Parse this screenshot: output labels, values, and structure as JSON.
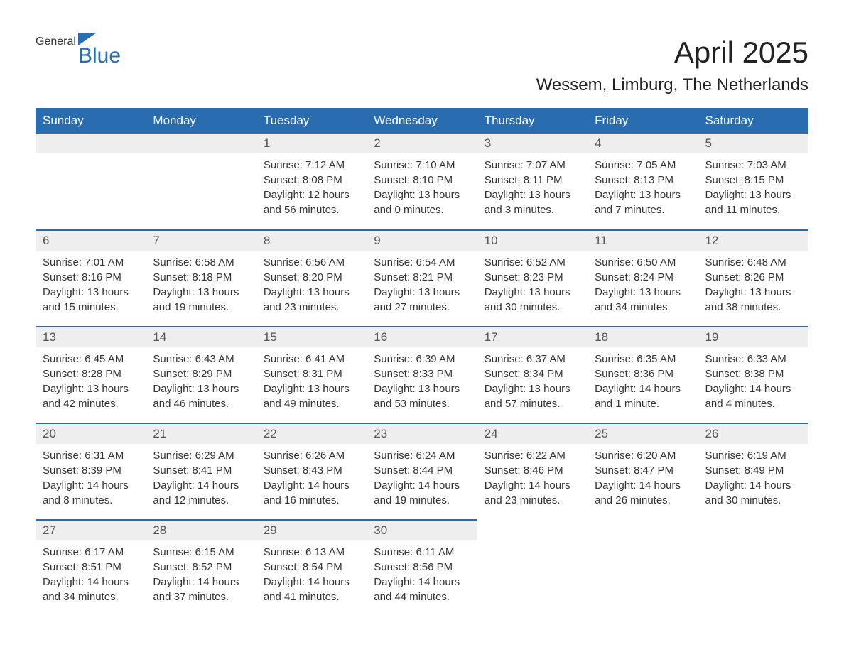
{
  "logo": {
    "general": "General",
    "blue": "Blue"
  },
  "title": "April 2025",
  "subtitle": "Wessem, Limburg, The Netherlands",
  "dayHeaders": [
    "Sunday",
    "Monday",
    "Tuesday",
    "Wednesday",
    "Thursday",
    "Friday",
    "Saturday"
  ],
  "colors": {
    "headerBg": "#2a6cb0",
    "headerText": "#ffffff",
    "dateBarBg": "#eeeeee",
    "bodyText": "#333333",
    "dateText": "#555555",
    "borderTop": "#2a6cb0"
  },
  "weeks": [
    [
      {
        "date": "",
        "sunrise": "",
        "sunset": "",
        "daylight": ""
      },
      {
        "date": "",
        "sunrise": "",
        "sunset": "",
        "daylight": ""
      },
      {
        "date": "1",
        "sunrise": "Sunrise: 7:12 AM",
        "sunset": "Sunset: 8:08 PM",
        "daylight": "Daylight: 12 hours and 56 minutes."
      },
      {
        "date": "2",
        "sunrise": "Sunrise: 7:10 AM",
        "sunset": "Sunset: 8:10 PM",
        "daylight": "Daylight: 13 hours and 0 minutes."
      },
      {
        "date": "3",
        "sunrise": "Sunrise: 7:07 AM",
        "sunset": "Sunset: 8:11 PM",
        "daylight": "Daylight: 13 hours and 3 minutes."
      },
      {
        "date": "4",
        "sunrise": "Sunrise: 7:05 AM",
        "sunset": "Sunset: 8:13 PM",
        "daylight": "Daylight: 13 hours and 7 minutes."
      },
      {
        "date": "5",
        "sunrise": "Sunrise: 7:03 AM",
        "sunset": "Sunset: 8:15 PM",
        "daylight": "Daylight: 13 hours and 11 minutes."
      }
    ],
    [
      {
        "date": "6",
        "sunrise": "Sunrise: 7:01 AM",
        "sunset": "Sunset: 8:16 PM",
        "daylight": "Daylight: 13 hours and 15 minutes."
      },
      {
        "date": "7",
        "sunrise": "Sunrise: 6:58 AM",
        "sunset": "Sunset: 8:18 PM",
        "daylight": "Daylight: 13 hours and 19 minutes."
      },
      {
        "date": "8",
        "sunrise": "Sunrise: 6:56 AM",
        "sunset": "Sunset: 8:20 PM",
        "daylight": "Daylight: 13 hours and 23 minutes."
      },
      {
        "date": "9",
        "sunrise": "Sunrise: 6:54 AM",
        "sunset": "Sunset: 8:21 PM",
        "daylight": "Daylight: 13 hours and 27 minutes."
      },
      {
        "date": "10",
        "sunrise": "Sunrise: 6:52 AM",
        "sunset": "Sunset: 8:23 PM",
        "daylight": "Daylight: 13 hours and 30 minutes."
      },
      {
        "date": "11",
        "sunrise": "Sunrise: 6:50 AM",
        "sunset": "Sunset: 8:24 PM",
        "daylight": "Daylight: 13 hours and 34 minutes."
      },
      {
        "date": "12",
        "sunrise": "Sunrise: 6:48 AM",
        "sunset": "Sunset: 8:26 PM",
        "daylight": "Daylight: 13 hours and 38 minutes."
      }
    ],
    [
      {
        "date": "13",
        "sunrise": "Sunrise: 6:45 AM",
        "sunset": "Sunset: 8:28 PM",
        "daylight": "Daylight: 13 hours and 42 minutes."
      },
      {
        "date": "14",
        "sunrise": "Sunrise: 6:43 AM",
        "sunset": "Sunset: 8:29 PM",
        "daylight": "Daylight: 13 hours and 46 minutes."
      },
      {
        "date": "15",
        "sunrise": "Sunrise: 6:41 AM",
        "sunset": "Sunset: 8:31 PM",
        "daylight": "Daylight: 13 hours and 49 minutes."
      },
      {
        "date": "16",
        "sunrise": "Sunrise: 6:39 AM",
        "sunset": "Sunset: 8:33 PM",
        "daylight": "Daylight: 13 hours and 53 minutes."
      },
      {
        "date": "17",
        "sunrise": "Sunrise: 6:37 AM",
        "sunset": "Sunset: 8:34 PM",
        "daylight": "Daylight: 13 hours and 57 minutes."
      },
      {
        "date": "18",
        "sunrise": "Sunrise: 6:35 AM",
        "sunset": "Sunset: 8:36 PM",
        "daylight": "Daylight: 14 hours and 1 minute."
      },
      {
        "date": "19",
        "sunrise": "Sunrise: 6:33 AM",
        "sunset": "Sunset: 8:38 PM",
        "daylight": "Daylight: 14 hours and 4 minutes."
      }
    ],
    [
      {
        "date": "20",
        "sunrise": "Sunrise: 6:31 AM",
        "sunset": "Sunset: 8:39 PM",
        "daylight": "Daylight: 14 hours and 8 minutes."
      },
      {
        "date": "21",
        "sunrise": "Sunrise: 6:29 AM",
        "sunset": "Sunset: 8:41 PM",
        "daylight": "Daylight: 14 hours and 12 minutes."
      },
      {
        "date": "22",
        "sunrise": "Sunrise: 6:26 AM",
        "sunset": "Sunset: 8:43 PM",
        "daylight": "Daylight: 14 hours and 16 minutes."
      },
      {
        "date": "23",
        "sunrise": "Sunrise: 6:24 AM",
        "sunset": "Sunset: 8:44 PM",
        "daylight": "Daylight: 14 hours and 19 minutes."
      },
      {
        "date": "24",
        "sunrise": "Sunrise: 6:22 AM",
        "sunset": "Sunset: 8:46 PM",
        "daylight": "Daylight: 14 hours and 23 minutes."
      },
      {
        "date": "25",
        "sunrise": "Sunrise: 6:20 AM",
        "sunset": "Sunset: 8:47 PM",
        "daylight": "Daylight: 14 hours and 26 minutes."
      },
      {
        "date": "26",
        "sunrise": "Sunrise: 6:19 AM",
        "sunset": "Sunset: 8:49 PM",
        "daylight": "Daylight: 14 hours and 30 minutes."
      }
    ],
    [
      {
        "date": "27",
        "sunrise": "Sunrise: 6:17 AM",
        "sunset": "Sunset: 8:51 PM",
        "daylight": "Daylight: 14 hours and 34 minutes."
      },
      {
        "date": "28",
        "sunrise": "Sunrise: 6:15 AM",
        "sunset": "Sunset: 8:52 PM",
        "daylight": "Daylight: 14 hours and 37 minutes."
      },
      {
        "date": "29",
        "sunrise": "Sunrise: 6:13 AM",
        "sunset": "Sunset: 8:54 PM",
        "daylight": "Daylight: 14 hours and 41 minutes."
      },
      {
        "date": "30",
        "sunrise": "Sunrise: 6:11 AM",
        "sunset": "Sunset: 8:56 PM",
        "daylight": "Daylight: 14 hours and 44 minutes."
      },
      {
        "date": "",
        "sunrise": "",
        "sunset": "",
        "daylight": ""
      },
      {
        "date": "",
        "sunrise": "",
        "sunset": "",
        "daylight": ""
      },
      {
        "date": "",
        "sunrise": "",
        "sunset": "",
        "daylight": ""
      }
    ]
  ]
}
